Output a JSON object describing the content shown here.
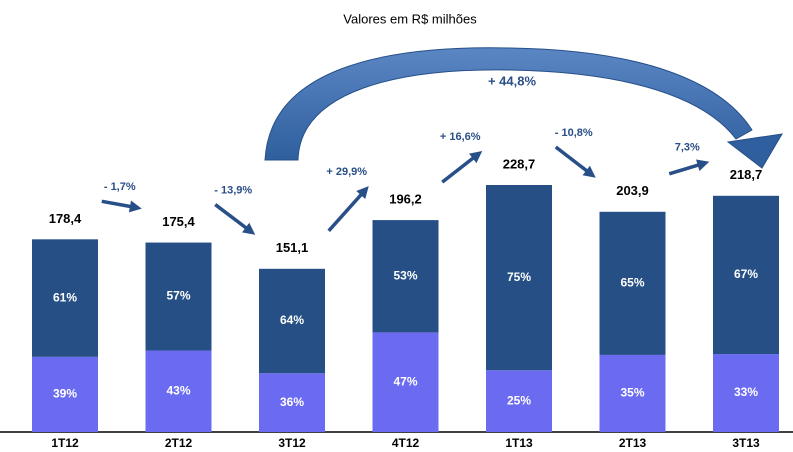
{
  "chart_data": {
    "type": "bar",
    "title": "Valores em R$ milhões",
    "categories": [
      "1T12",
      "2T12",
      "3T12",
      "4T12",
      "1T13",
      "2T13",
      "3T13"
    ],
    "values": [
      178.4,
      175.4,
      151.1,
      196.2,
      228.7,
      203.9,
      218.7
    ],
    "value_labels": [
      "178,4",
      "175,4",
      "151,1",
      "196,2",
      "228,7",
      "203,9",
      "218,7"
    ],
    "series": [
      {
        "color": "#6b6bf2",
        "values": [
          39,
          43,
          36,
          47,
          25,
          35,
          33
        ],
        "value_labels": [
          "39%",
          "43%",
          "36%",
          "47%",
          "25%",
          "35%",
          "33%"
        ]
      },
      {
        "color": "#264f86",
        "values": [
          61,
          57,
          64,
          53,
          75,
          65,
          67
        ],
        "value_labels": [
          "61%",
          "57%",
          "64%",
          "53%",
          "75%",
          "65%",
          "67%"
        ]
      }
    ],
    "changes": {
      "values": [
        -1.7,
        -13.9,
        29.9,
        16.6,
        -10.8,
        7.3
      ],
      "value_labels": [
        "- 1,7%",
        "- 13,9%",
        "+ 29,9%",
        "+ 16,6%",
        "- 10,8%",
        "7,3%"
      ]
    },
    "overall_change": {
      "value": 44.8,
      "label": "+ 44,8%"
    }
  }
}
